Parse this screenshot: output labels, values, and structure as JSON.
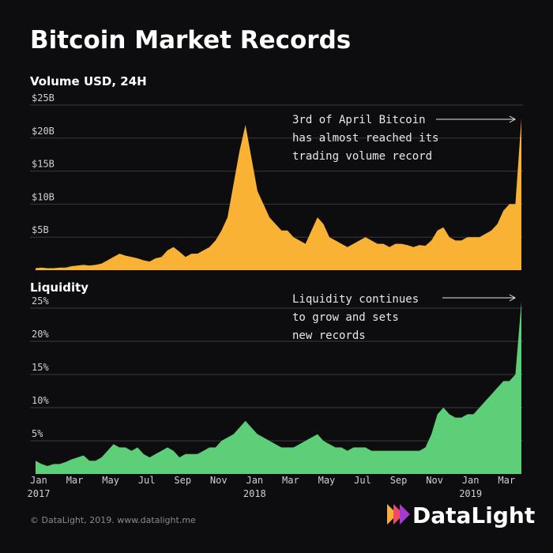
{
  "title": "Bitcoin Market Records",
  "footer": "© DataLight, 2019. www.datalight.me",
  "brand": "DataLight",
  "chart_data": [
    {
      "type": "area",
      "title": "Volume USD, 24H",
      "color": "#f9b233",
      "annotation": [
        "3rd of April Bitcoin",
        "has almost reached its",
        "trading volume record"
      ],
      "ylim": [
        0,
        25
      ],
      "yticks": [
        {
          "value": 5,
          "label": "$5B"
        },
        {
          "value": 10,
          "label": "$10B"
        },
        {
          "value": 15,
          "label": "$15B"
        },
        {
          "value": 20,
          "label": "$20B"
        },
        {
          "value": 25,
          "label": "$25B"
        }
      ],
      "grid": true,
      "values": [
        0.3,
        0.4,
        0.3,
        0.3,
        0.4,
        0.4,
        0.6,
        0.7,
        0.8,
        0.7,
        0.8,
        1.0,
        1.5,
        2.0,
        2.5,
        2.2,
        2.0,
        1.8,
        1.5,
        1.3,
        1.8,
        2.0,
        3.0,
        3.5,
        2.8,
        2.0,
        2.5,
        2.5,
        3.0,
        3.5,
        4.5,
        6.0,
        8.0,
        13,
        18,
        22,
        17,
        12,
        10,
        8,
        7,
        6,
        6,
        5,
        4.5,
        4,
        6,
        8,
        7,
        5,
        4.5,
        4,
        3.5,
        4,
        4.5,
        5,
        4.5,
        4,
        4,
        3.5,
        4,
        4,
        3.8,
        3.5,
        3.8,
        3.7,
        4.5,
        6,
        6.5,
        5,
        4.5,
        4.5,
        5,
        5,
        5,
        5.5,
        6,
        7,
        9,
        10,
        10,
        23
      ]
    },
    {
      "type": "area",
      "title": "Liquidity",
      "color": "#5ccf78",
      "annotation": [
        "Liquidity continues",
        "to grow and sets",
        "new records"
      ],
      "ylim": [
        0,
        25
      ],
      "yticks": [
        {
          "value": 5,
          "label": "5%"
        },
        {
          "value": 10,
          "label": "10%"
        },
        {
          "value": 15,
          "label": "15%"
        },
        {
          "value": 20,
          "label": "20%"
        },
        {
          "value": 25,
          "label": "25%"
        }
      ],
      "grid": true,
      "categories": [
        "Jan\n2017",
        null,
        null,
        null,
        null,
        null,
        "Mar",
        null,
        null,
        null,
        null,
        null,
        "May",
        null,
        null,
        null,
        null,
        null,
        "Jul",
        null,
        null,
        null,
        null,
        null,
        "Sep",
        null,
        null,
        null,
        null,
        null,
        "Nov",
        null,
        null,
        null,
        null,
        null,
        "Jan\n2018",
        null,
        null,
        null,
        null,
        null,
        "Mar",
        null,
        null,
        null,
        null,
        null,
        "May",
        null,
        null,
        null,
        null,
        null,
        "Jul",
        null,
        null,
        null,
        null,
        null,
        "Sep",
        null,
        null,
        null,
        null,
        null,
        "Nov",
        null,
        null,
        null,
        null,
        null,
        "Jan\n2019",
        null,
        null,
        null,
        null,
        null,
        "Mar",
        null,
        null,
        null
      ],
      "values": [
        2,
        1.5,
        1.2,
        1.5,
        1.5,
        1.8,
        2.2,
        2.5,
        2.8,
        2,
        2,
        2.5,
        3.5,
        4.5,
        4,
        4,
        3.5,
        4,
        3,
        2.5,
        3,
        3.5,
        4,
        3.5,
        2.5,
        3,
        3,
        3,
        3.5,
        4,
        4,
        5,
        5.5,
        6,
        7,
        8,
        7,
        6,
        5.5,
        5,
        4.5,
        4,
        4,
        4,
        4.5,
        5,
        5.5,
        6,
        5,
        4.5,
        4,
        4,
        3.5,
        4,
        4,
        4,
        3.5,
        3.5,
        3.5,
        3.5,
        3.5,
        3.5,
        3.5,
        3.5,
        3.5,
        4,
        6,
        9,
        10,
        9,
        8.5,
        8.5,
        9,
        9,
        10,
        11,
        12,
        13,
        14,
        14,
        15,
        26
      ]
    }
  ]
}
